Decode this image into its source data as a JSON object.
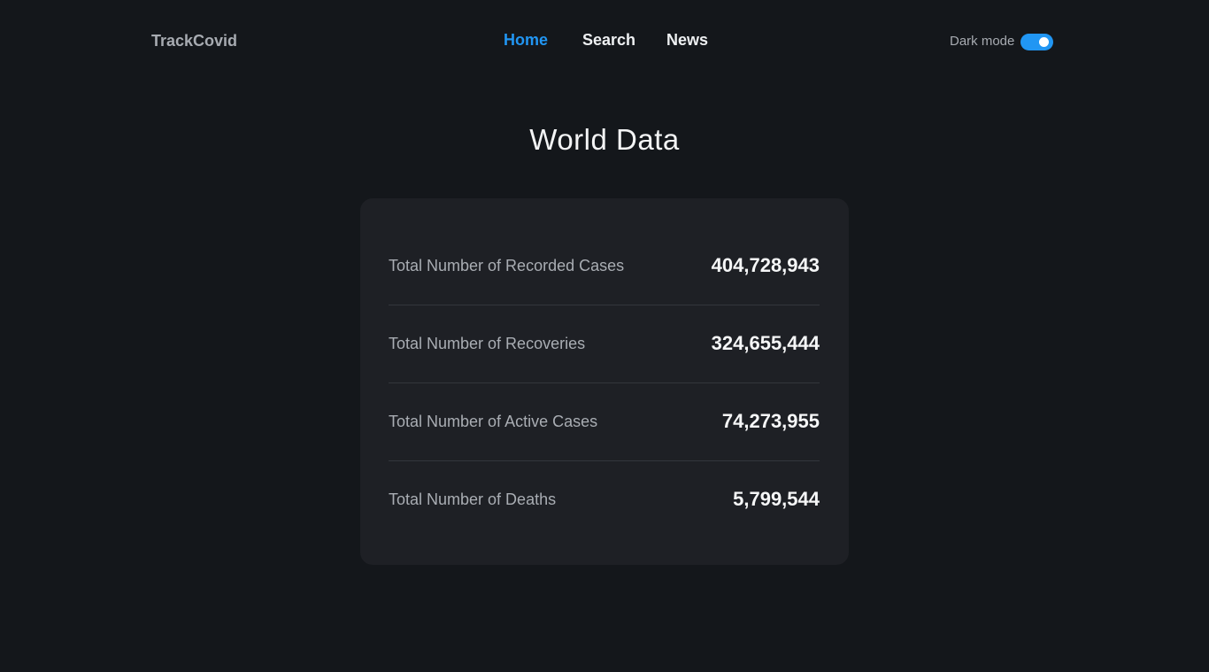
{
  "colors": {
    "accent": "#2196f3",
    "background": "#14171b",
    "card": "#1e2025"
  },
  "nav": {
    "brand": "TrackCovid",
    "links": [
      {
        "label": "Home",
        "active": true
      },
      {
        "label": "Search",
        "active": false
      },
      {
        "label": "News",
        "active": false
      }
    ],
    "dark_mode_label": "Dark mode",
    "dark_mode_on": true
  },
  "main": {
    "title": "World Data",
    "stats": [
      {
        "label": "Total Number of Recorded Cases",
        "value": "404,728,943"
      },
      {
        "label": "Total Number of Recoveries",
        "value": "324,655,444"
      },
      {
        "label": "Total Number of Active Cases",
        "value": "74,273,955"
      },
      {
        "label": "Total Number of Deaths",
        "value": "5,799,544"
      }
    ]
  }
}
